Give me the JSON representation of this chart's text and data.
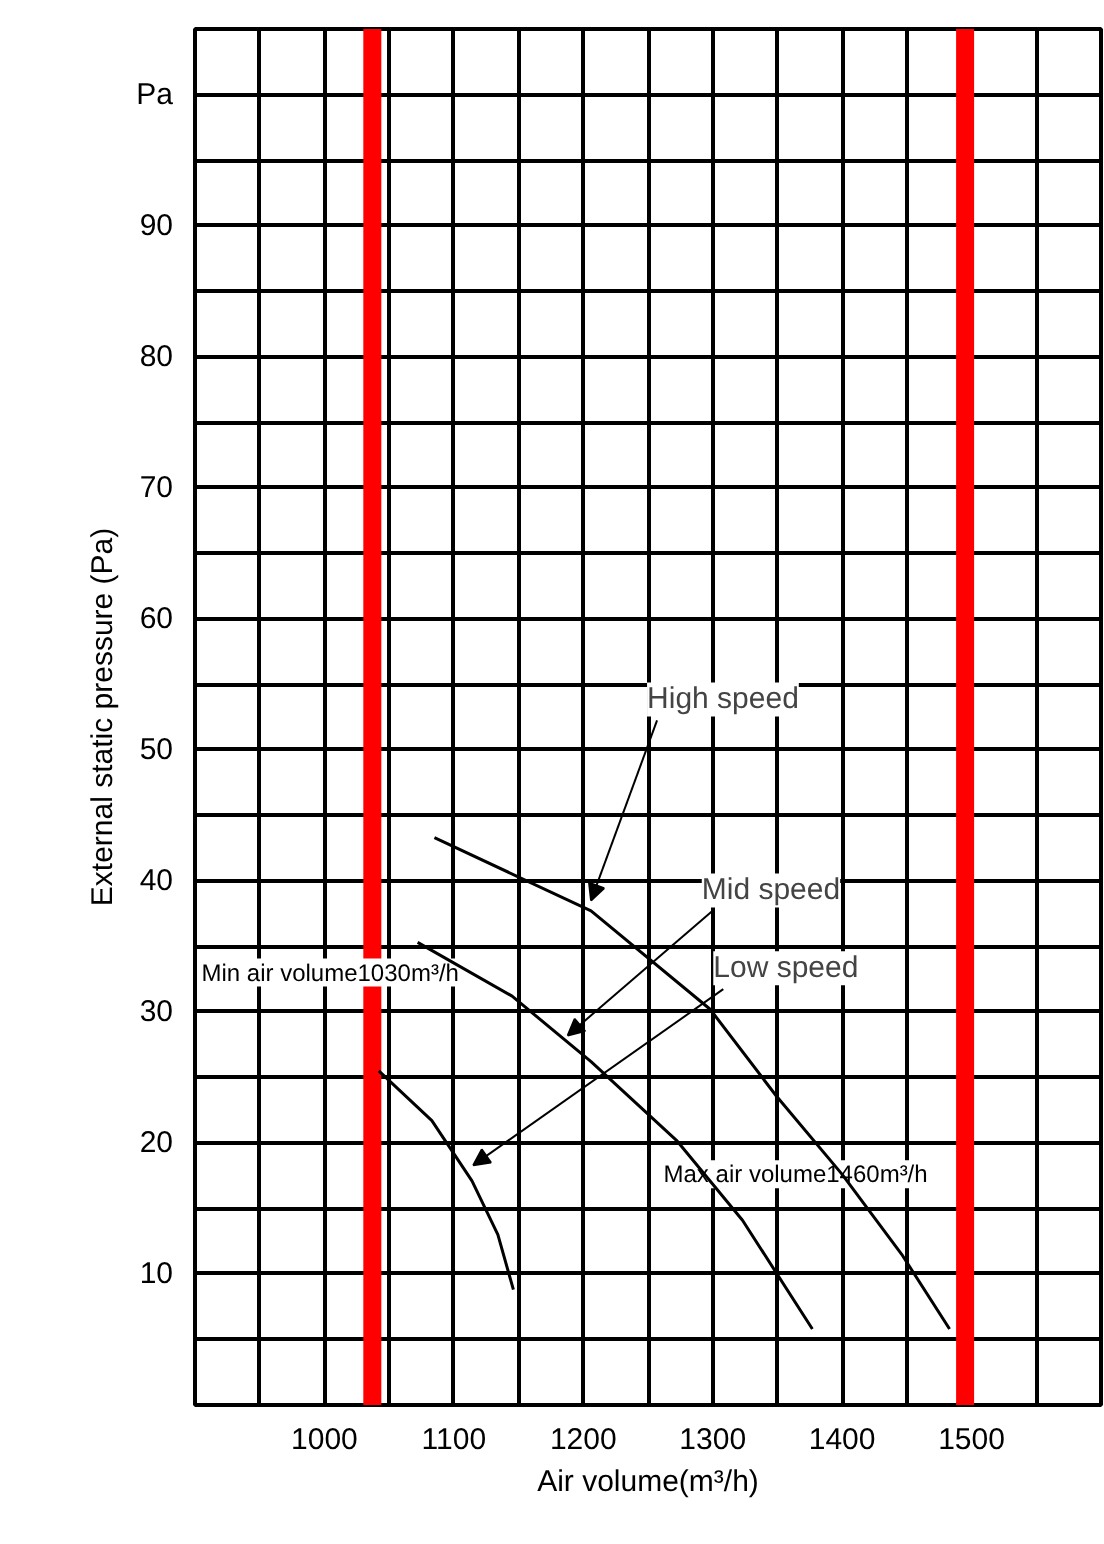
{
  "chart_data": {
    "type": "line",
    "xlabel": "Air volume(m³/h)",
    "ylabel": "External static pressure (Pa)",
    "xlim": [
      900,
      1600
    ],
    "ylim": [
      0,
      105
    ],
    "xticks": [
      {
        "value": 900,
        "label": null
      },
      {
        "value": 950,
        "label": null
      },
      1000,
      {
        "value": 1050,
        "label": null
      },
      1100,
      {
        "value": 1150,
        "label": null
      },
      1200,
      {
        "value": 1250,
        "label": null
      },
      1300,
      {
        "value": 1350,
        "label": null
      },
      1400,
      {
        "value": 1450,
        "label": null
      },
      1500,
      {
        "value": 1550,
        "label": null
      }
    ],
    "yticks": [
      {
        "value": 5,
        "label": null
      },
      10,
      {
        "value": 15,
        "label": null
      },
      20,
      {
        "value": 25,
        "label": null
      },
      30,
      {
        "value": 35,
        "label": null
      },
      40,
      {
        "value": 45,
        "label": null
      },
      50,
      {
        "value": 55,
        "label": null
      },
      60,
      {
        "value": 65,
        "label": null
      },
      70,
      {
        "value": 75,
        "label": null
      },
      80,
      {
        "value": 85,
        "label": null
      },
      90,
      {
        "value": 95,
        "label": null
      },
      {
        "value": 100,
        "label": "Pa"
      }
    ],
    "grid": true,
    "marker": "none",
    "line_style": "solid",
    "series": [
      {
        "color": "#000000",
        "x": [
          1085,
          1206,
          1298,
          1349,
          1400,
          1446,
          1483
        ],
        "values": [
          43.3,
          37.7,
          30.2,
          23.6,
          17.6,
          11.5,
          5.8
        ]
      },
      {
        "color": "#000000",
        "x": [
          1072,
          1145,
          1206,
          1272,
          1323,
          1377
        ],
        "values": [
          35.3,
          31.2,
          26.2,
          20.2,
          14.1,
          5.8
        ]
      },
      {
        "color": "#000000",
        "x": [
          1042,
          1083,
          1114,
          1134,
          1146
        ],
        "values": [
          25.5,
          21.7,
          17.1,
          13,
          8.8
        ]
      }
    ],
    "annotations": [
      {
        "text": "High speed",
        "x": 1206,
        "y": 38.5
      },
      {
        "text": "Mid speed",
        "x": 1188,
        "y": 28.2
      },
      {
        "text": "Low speed",
        "x": 1115,
        "y": 18.3
      }
    ],
    "ref_lines": [
      {
        "axis": "x",
        "value": 1037,
        "label": "Min air volume1030m³/h",
        "color": "#ff0000"
      },
      {
        "axis": "x",
        "value": 1495,
        "label": "Max air volume1460m³/h",
        "color": "#ff0000"
      }
    ]
  }
}
